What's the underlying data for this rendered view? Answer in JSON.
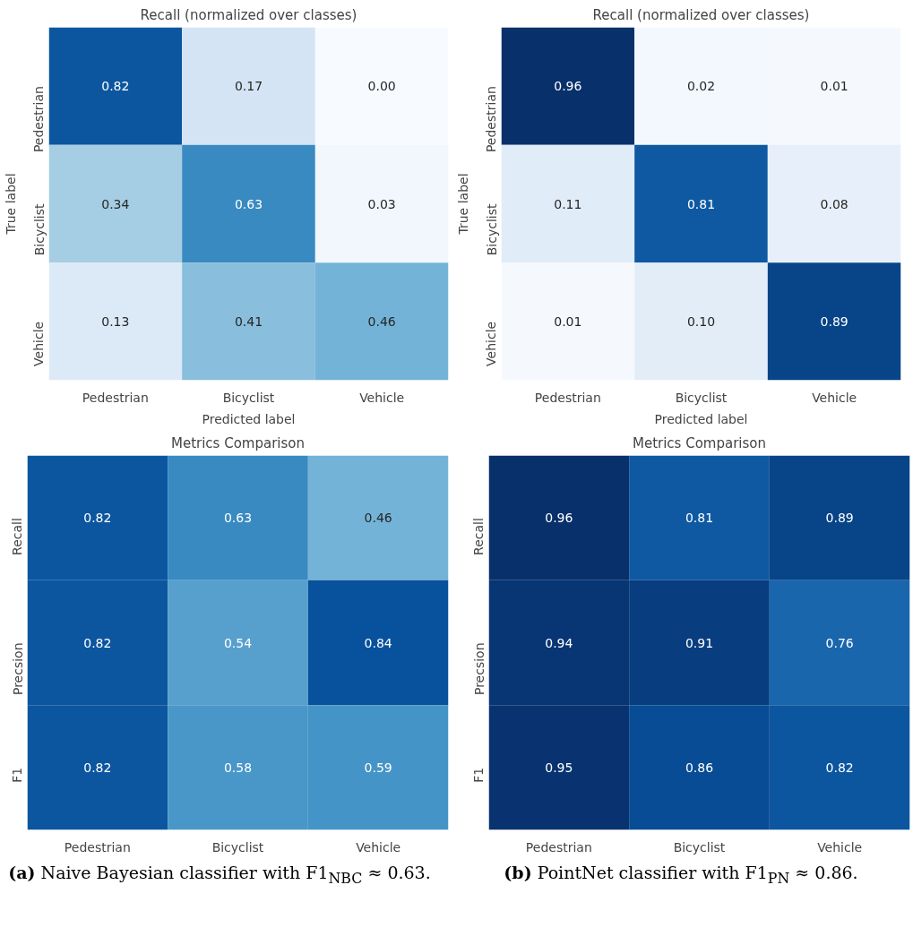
{
  "chart_data": [
    {
      "type": "heatmap",
      "title": "Recall (normalized over classes)",
      "xlabel": "Predicted label",
      "ylabel": "True label",
      "categories": [
        "Pedestrian",
        "Bicyclist",
        "Vehicle"
      ],
      "y_categories": [
        "Pedestrian",
        "Bicyclist",
        "Vehicle"
      ],
      "data_labels": true,
      "cells": [
        [
          0.82,
          0.17,
          0.0
        ],
        [
          0.34,
          0.63,
          0.03
        ],
        [
          0.13,
          0.41,
          0.46
        ]
      ],
      "cell_labels": [
        [
          "0.82",
          "0.17",
          "0.00"
        ],
        [
          "0.34",
          "0.63",
          "0.03"
        ],
        [
          "0.13",
          "0.41",
          "0.46"
        ]
      ]
    },
    {
      "type": "heatmap",
      "title": "Recall (normalized over classes)",
      "xlabel": "Predicted label",
      "ylabel": "True label",
      "categories": [
        "Pedestrian",
        "Bicyclist",
        "Vehicle"
      ],
      "y_categories": [
        "Pedestrian",
        "Bicyclist",
        "Vehicle"
      ],
      "data_labels": true,
      "cells": [
        [
          0.96,
          0.02,
          0.01
        ],
        [
          0.11,
          0.81,
          0.08
        ],
        [
          0.01,
          0.1,
          0.89
        ]
      ],
      "cell_labels": [
        [
          "0.96",
          "0.02",
          "0.01"
        ],
        [
          "0.11",
          "0.81",
          "0.08"
        ],
        [
          "0.01",
          "0.10",
          "0.89"
        ]
      ]
    },
    {
      "type": "heatmap",
      "title": "Metrics Comparison",
      "categories": [
        "Pedestrian",
        "Bicyclist",
        "Vehicle"
      ],
      "y_categories": [
        "Recall",
        "Precsion",
        "F1"
      ],
      "data_labels": true,
      "cells": [
        [
          0.82,
          0.63,
          0.46
        ],
        [
          0.82,
          0.54,
          0.84
        ],
        [
          0.82,
          0.58,
          0.59
        ]
      ],
      "cell_labels": [
        [
          "0.82",
          "0.63",
          "0.46"
        ],
        [
          "0.82",
          "0.54",
          "0.84"
        ],
        [
          "0.82",
          "0.58",
          "0.59"
        ]
      ],
      "annotations": [
        "(a) Naive Bayesian classifier with F1$_{NBC}$ ≈ 0.63."
      ]
    },
    {
      "type": "heatmap",
      "title": "Metrics Comparison",
      "categories": [
        "Pedestrian",
        "Bicyclist",
        "Vehicle"
      ],
      "y_categories": [
        "Recall",
        "Precsion",
        "F1"
      ],
      "data_labels": true,
      "cells": [
        [
          0.96,
          0.81,
          0.89
        ],
        [
          0.94,
          0.91,
          0.76
        ],
        [
          0.95,
          0.86,
          0.82
        ]
      ],
      "cell_labels": [
        [
          "0.96",
          "0.81",
          "0.89"
        ],
        [
          "0.94",
          "0.91",
          "0.76"
        ],
        [
          "0.95",
          "0.86",
          "0.82"
        ]
      ],
      "annotations": [
        "(b) PointNet classifier with F1$_{PN}$ ≈ 0.86."
      ]
    }
  ]
}
